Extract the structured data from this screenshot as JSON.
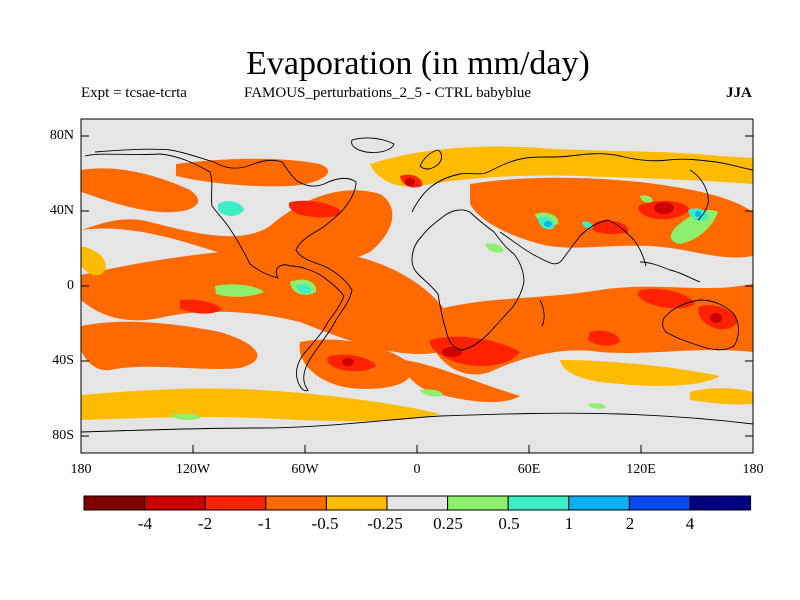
{
  "title": "Evaporation (in mm/day)",
  "subtitle": {
    "left": "Expt = tcsae-tcrta",
    "center": "FAMOUS_perturbations_2_5 - CTRL babyblue",
    "right": "JJA"
  },
  "axes": {
    "y_ticks": [
      "80N",
      "40N",
      "0",
      "40S",
      "80S"
    ],
    "x_ticks": [
      "180",
      "120W",
      "60W",
      "0",
      "60E",
      "120E",
      "180"
    ]
  },
  "colorbar": {
    "colors": [
      "#800000",
      "#cc0000",
      "#ff2200",
      "#ff6a00",
      "#ffbb00",
      "#e5e5e5",
      "#8cf06e",
      "#3ceec5",
      "#0bb0f0",
      "#0a48f2",
      "#000080"
    ],
    "labels": [
      "-4",
      "-2",
      "-1",
      "-0.5",
      "-0.25",
      "0.25",
      "0.5",
      "1",
      "2",
      "4"
    ]
  },
  "palette": {
    "neutral": "#e5e5e5",
    "slight_decrease": "#ffbb00",
    "decrease": "#ff6a00",
    "strong_decrease": "#ff2200",
    "very_strong_decrease": "#cc0000",
    "slight_increase": "#8cf06e",
    "increase": "#3ceec5",
    "strong_increase": "#0bb0f0"
  }
}
